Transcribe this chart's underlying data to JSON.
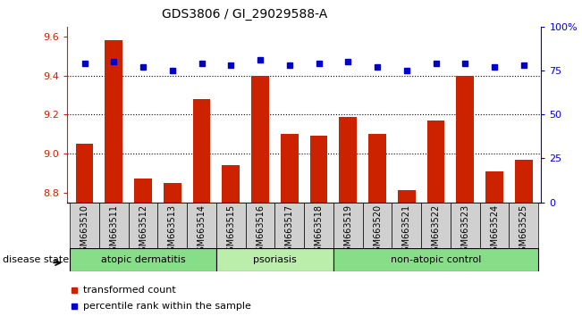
{
  "title": "GDS3806 / GI_29029588-A",
  "samples": [
    "GSM663510",
    "GSM663511",
    "GSM663512",
    "GSM663513",
    "GSM663514",
    "GSM663515",
    "GSM663516",
    "GSM663517",
    "GSM663518",
    "GSM663519",
    "GSM663520",
    "GSM663521",
    "GSM663522",
    "GSM663523",
    "GSM663524",
    "GSM663525"
  ],
  "transformed_count": [
    9.05,
    9.58,
    8.87,
    8.85,
    9.28,
    8.94,
    9.4,
    9.1,
    9.09,
    9.19,
    9.1,
    8.81,
    9.17,
    9.4,
    8.91,
    8.97
  ],
  "percentile_rank": [
    79,
    80,
    77,
    75,
    79,
    78,
    81,
    78,
    79,
    80,
    77,
    75,
    79,
    79,
    77,
    78
  ],
  "ylim_left": [
    8.75,
    9.65
  ],
  "ylim_right": [
    0,
    100
  ],
  "yticks_left": [
    8.8,
    9.0,
    9.2,
    9.4,
    9.6
  ],
  "yticks_right": [
    0,
    25,
    50,
    75,
    100
  ],
  "bar_color": "#cc2200",
  "dot_color": "#0000cc",
  "groups": [
    {
      "label": "atopic dermatitis",
      "start": 0,
      "end": 4,
      "color": "#88dd88"
    },
    {
      "label": "psoriasis",
      "start": 5,
      "end": 8,
      "color": "#bbeeaa"
    },
    {
      "label": "non-atopic control",
      "start": 9,
      "end": 15,
      "color": "#88dd88"
    }
  ],
  "disease_state_label": "disease state",
  "legend_items": [
    {
      "color": "#cc2200",
      "label": "transformed count"
    },
    {
      "color": "#0000cc",
      "label": "percentile rank within the sample"
    }
  ],
  "background_color": "#ffffff",
  "bar_width": 0.6,
  "ybase": 8.75
}
